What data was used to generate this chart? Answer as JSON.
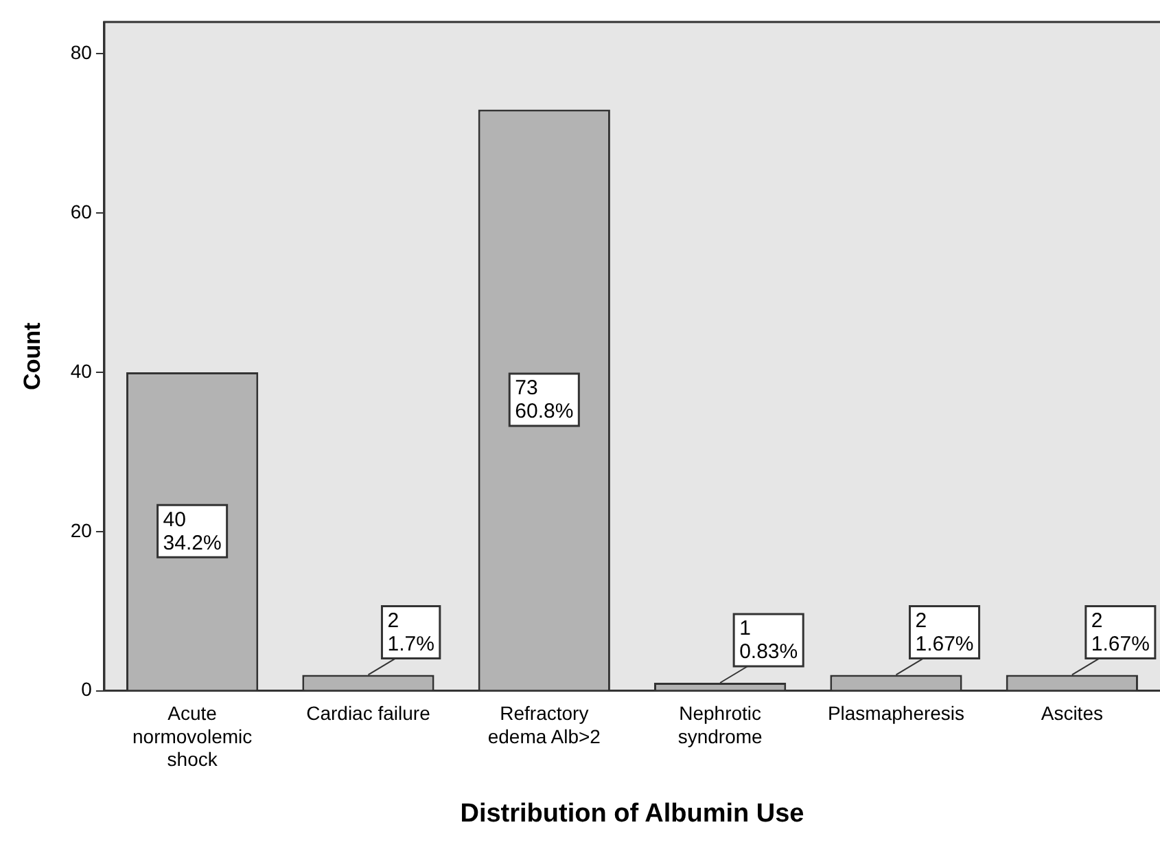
{
  "chart_data": {
    "type": "bar",
    "xlabel": "Distribution of Albumin Use",
    "ylabel": "Count",
    "categories": [
      "Acute\nnormovolemic\nshock",
      "Cardiac failure",
      "Refractory\nedema Alb>2",
      "Nephrotic\nsyndrome",
      "Plasmapheresis",
      "Ascites"
    ],
    "values": [
      40,
      2,
      73,
      1,
      2,
      2
    ],
    "value_labels": [
      "40\n34.2%",
      "2\n1.7%",
      "73\n60.8%",
      "1\n0.83%",
      "2\n1.67%",
      "2\n1.67%"
    ],
    "color": "#b3b3b3",
    "ylim": [
      0,
      84
    ],
    "yticks": [
      0,
      20,
      40,
      60,
      80
    ],
    "grid": false,
    "legend": false
  }
}
